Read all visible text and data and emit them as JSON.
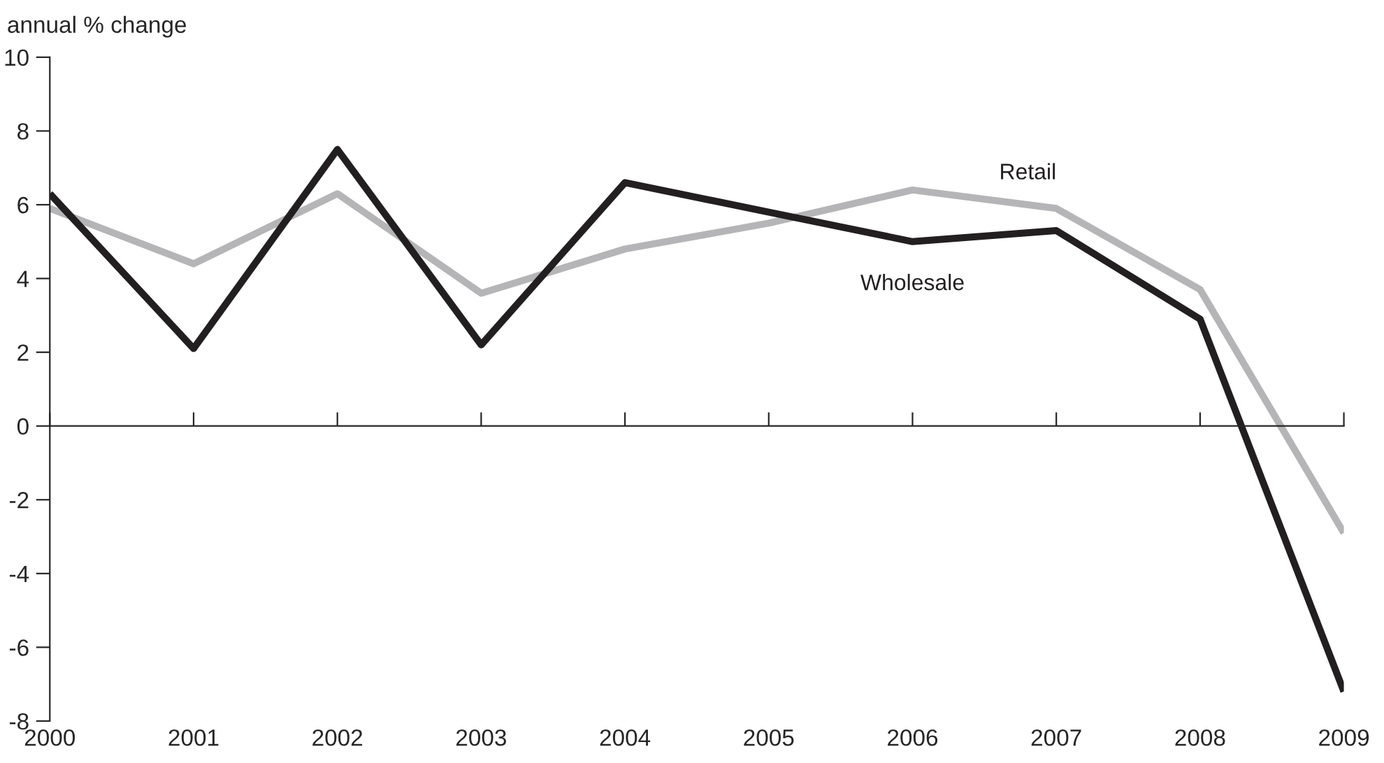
{
  "chart_data": {
    "type": "line",
    "ylabel": "annual % change",
    "x": [
      2000,
      2001,
      2002,
      2003,
      2004,
      2005,
      2006,
      2007,
      2008,
      2009
    ],
    "xlim": [
      2000,
      2009
    ],
    "xticks": [
      2000,
      2001,
      2002,
      2003,
      2004,
      2005,
      2006,
      2007,
      2008,
      2009
    ],
    "ylim": [
      -8,
      10
    ],
    "yticks": [
      -8,
      -6,
      -4,
      -2,
      0,
      2,
      4,
      6,
      8,
      10
    ],
    "legend": false,
    "marker": "none",
    "line_style": "solid",
    "series": [
      {
        "name": "Retail",
        "color": "#b5b5b7",
        "values": [
          5.9,
          4.4,
          6.3,
          3.6,
          4.8,
          5.5,
          6.4,
          5.9,
          3.7,
          -2.9
        ]
      },
      {
        "name": "Wholesale",
        "color": "#231f20",
        "values": [
          6.3,
          2.1,
          7.5,
          2.2,
          6.6,
          5.8,
          5.0,
          5.3,
          2.9,
          -7.2
        ]
      }
    ]
  }
}
